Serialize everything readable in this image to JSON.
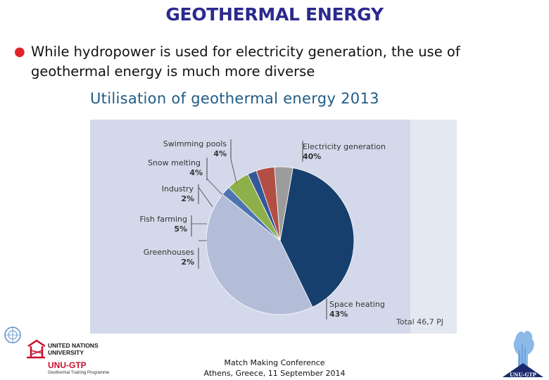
{
  "slide": {
    "title": "GEOTHERMAL ENERGY",
    "bullet": "While hydropower is used for electricity generation, the use of geothermal energy is much more diverse"
  },
  "chart_data": {
    "type": "pie",
    "title": "Utilisation of geothermal energy 2013",
    "unit": "%",
    "total_label": "Total 46,7 PJ",
    "slices": [
      {
        "label": "Electricity generation",
        "value": 40,
        "value_label": "40%",
        "color": "#163f6e"
      },
      {
        "label": "Space heating",
        "value": 43,
        "value_label": "43%",
        "color": "#b3bdd8"
      },
      {
        "label": "Greenhouses",
        "value": 2,
        "value_label": "2%",
        "color": "#4d74b0"
      },
      {
        "label": "Fish farming",
        "value": 5,
        "value_label": "5%",
        "color": "#8eb04a"
      },
      {
        "label": "Industry",
        "value": 2,
        "value_label": "2%",
        "color": "#35589a"
      },
      {
        "label": "Snow melting",
        "value": 4,
        "value_label": "4%",
        "color": "#b24e43"
      },
      {
        "label": "Swimming pools",
        "value": 4,
        "value_label": "4%",
        "color": "#9c9c9c"
      }
    ],
    "background_color": "#d3d9ea",
    "side_panel_color": "#e4e8f1"
  },
  "footer": {
    "line1": "Match Making Conference",
    "line2": "Athens, Greece, 11 September 2014",
    "org_name": "UNITED NATIONS\nUNIVERSITY",
    "program_short": "UNU-GTP",
    "program_full": "Geothermal Training Programme",
    "right_logo_text": "UNU-GTP"
  }
}
